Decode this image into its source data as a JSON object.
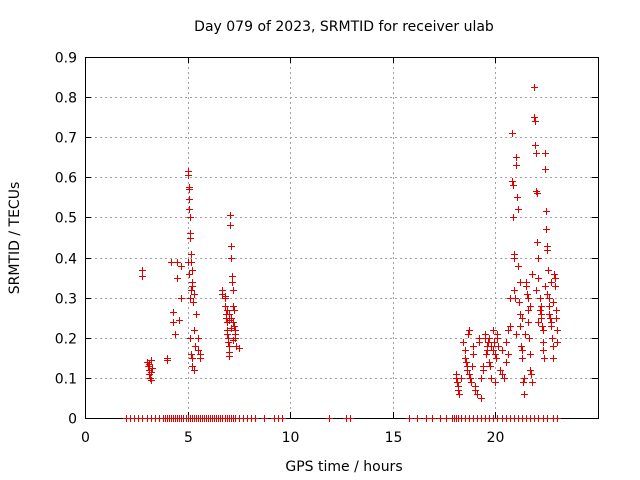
{
  "chart_data": {
    "type": "scatter",
    "title": "Day 079 of 2023, SRMTID for receiver ulab",
    "xlabel": "GPS time / hours",
    "ylabel": "SRMTID / TECUs",
    "xlim": [
      0,
      25
    ],
    "ylim": [
      0,
      0.9
    ],
    "xticks": [
      0,
      5,
      10,
      15,
      20
    ],
    "xtick_labels": [
      "0",
      "5",
      "10",
      "15",
      "20"
    ],
    "yticks": [
      0,
      0.1,
      0.2,
      0.3,
      0.4,
      0.5,
      0.6,
      0.7,
      0.8,
      0.9
    ],
    "ytick_labels": [
      "0",
      "0.1",
      "0.2",
      "0.3",
      "0.4",
      "0.5",
      "0.6",
      "0.7",
      "0.8",
      "0.9"
    ],
    "grid": true,
    "marker": "+",
    "color": "#e00000",
    "series": [
      {
        "name": "SRMTID",
        "points": [
          [
            2.8,
            0.37
          ],
          [
            2.8,
            0.355
          ],
          [
            3.0,
            0.14
          ],
          [
            3.05,
            0.13
          ],
          [
            3.1,
            0.12
          ],
          [
            3.1,
            0.11
          ],
          [
            3.15,
            0.1
          ],
          [
            3.2,
            0.145
          ],
          [
            3.2,
            0.095
          ],
          [
            3.25,
            0.125
          ],
          [
            3.1,
            0.135
          ],
          [
            3.2,
            0.115
          ],
          [
            4.0,
            0.15
          ],
          [
            4.0,
            0.145
          ],
          [
            4.2,
            0.39
          ],
          [
            4.3,
            0.265
          ],
          [
            4.3,
            0.24
          ],
          [
            4.4,
            0.21
          ],
          [
            4.5,
            0.39
          ],
          [
            4.5,
            0.35
          ],
          [
            4.6,
            0.245
          ],
          [
            4.7,
            0.3
          ],
          [
            4.7,
            0.38
          ],
          [
            5.0,
            0.615
          ],
          [
            5.0,
            0.605
          ],
          [
            5.05,
            0.575
          ],
          [
            5.05,
            0.57
          ],
          [
            5.05,
            0.545
          ],
          [
            5.05,
            0.52
          ],
          [
            5.1,
            0.5
          ],
          [
            5.1,
            0.46
          ],
          [
            5.1,
            0.45
          ],
          [
            5.15,
            0.41
          ],
          [
            5.15,
            0.39
          ],
          [
            5.2,
            0.37
          ],
          [
            5.2,
            0.34
          ],
          [
            5.2,
            0.33
          ],
          [
            5.15,
            0.32
          ],
          [
            5.1,
            0.3
          ],
          [
            5.1,
            0.2
          ],
          [
            5.15,
            0.16
          ],
          [
            5.2,
            0.15
          ],
          [
            5.2,
            0.13
          ],
          [
            5.3,
            0.12
          ],
          [
            5.3,
            0.31
          ],
          [
            5.4,
            0.26
          ],
          [
            5.3,
            0.22
          ],
          [
            5.35,
            0.18
          ],
          [
            5.5,
            0.2
          ],
          [
            5.5,
            0.17
          ],
          [
            5.6,
            0.15
          ],
          [
            5.6,
            0.16
          ],
          [
            5.0,
            0.39
          ],
          [
            5.05,
            0.36
          ],
          [
            5.25,
            0.29
          ],
          [
            6.7,
            0.32
          ],
          [
            6.7,
            0.31
          ],
          [
            6.8,
            0.305
          ],
          [
            6.8,
            0.3
          ],
          [
            6.85,
            0.26
          ],
          [
            6.85,
            0.25
          ],
          [
            6.9,
            0.24
          ],
          [
            6.9,
            0.22
          ],
          [
            6.9,
            0.21
          ],
          [
            6.95,
            0.2
          ],
          [
            6.95,
            0.19
          ],
          [
            7.0,
            0.18
          ],
          [
            7.0,
            0.165
          ],
          [
            7.0,
            0.155
          ],
          [
            7.05,
            0.505
          ],
          [
            7.05,
            0.48
          ],
          [
            7.1,
            0.43
          ],
          [
            7.1,
            0.4
          ],
          [
            7.15,
            0.355
          ],
          [
            7.15,
            0.34
          ],
          [
            7.2,
            0.32
          ],
          [
            7.2,
            0.28
          ],
          [
            7.25,
            0.27
          ],
          [
            7.25,
            0.23
          ],
          [
            7.3,
            0.22
          ],
          [
            7.3,
            0.21
          ],
          [
            7.3,
            0.2
          ],
          [
            7.35,
            0.18
          ],
          [
            7.5,
            0.175
          ],
          [
            7.0,
            0.245
          ],
          [
            7.1,
            0.225
          ],
          [
            7.2,
            0.195
          ],
          [
            6.8,
            0.28
          ],
          [
            6.9,
            0.27
          ],
          [
            7.0,
            0.26
          ],
          [
            7.1,
            0.25
          ],
          [
            7.2,
            0.24
          ],
          [
            18.1,
            0.11
          ],
          [
            18.1,
            0.1
          ],
          [
            18.15,
            0.09
          ],
          [
            18.2,
            0.08
          ],
          [
            18.2,
            0.07
          ],
          [
            18.25,
            0.06
          ],
          [
            18.3,
            0.1
          ],
          [
            18.4,
            0.19
          ],
          [
            18.5,
            0.17
          ],
          [
            18.5,
            0.15
          ],
          [
            18.55,
            0.14
          ],
          [
            18.6,
            0.13
          ],
          [
            18.6,
            0.12
          ],
          [
            18.65,
            0.21
          ],
          [
            18.7,
            0.22
          ],
          [
            18.7,
            0.11
          ],
          [
            18.75,
            0.1
          ],
          [
            18.8,
            0.09
          ],
          [
            18.85,
            0.13
          ],
          [
            18.9,
            0.16
          ],
          [
            18.9,
            0.18
          ],
          [
            19.0,
            0.08
          ],
          [
            19.0,
            0.07
          ],
          [
            19.1,
            0.06
          ],
          [
            19.2,
            0.2
          ],
          [
            19.2,
            0.19
          ],
          [
            19.3,
            0.05
          ],
          [
            19.3,
            0.1
          ],
          [
            19.4,
            0.13
          ],
          [
            19.4,
            0.12
          ],
          [
            19.5,
            0.21
          ],
          [
            19.5,
            0.2
          ],
          [
            19.55,
            0.16
          ],
          [
            19.6,
            0.18
          ],
          [
            19.6,
            0.17
          ],
          [
            19.65,
            0.19
          ],
          [
            19.7,
            0.2
          ],
          [
            19.7,
            0.14
          ],
          [
            19.75,
            0.13
          ],
          [
            19.8,
            0.18
          ],
          [
            19.8,
            0.1
          ],
          [
            19.9,
            0.22
          ],
          [
            19.9,
            0.17
          ],
          [
            19.95,
            0.19
          ],
          [
            20.0,
            0.16
          ],
          [
            20.0,
            0.09
          ],
          [
            20.05,
            0.15
          ],
          [
            20.1,
            0.21
          ],
          [
            20.1,
            0.2
          ],
          [
            20.15,
            0.18
          ],
          [
            20.2,
            0.12
          ],
          [
            20.3,
            0.11
          ],
          [
            20.3,
            0.17
          ],
          [
            20.4,
            0.1
          ],
          [
            20.5,
            0.19
          ],
          [
            20.5,
            0.14
          ],
          [
            20.6,
            0.22
          ],
          [
            20.6,
            0.16
          ],
          [
            20.7,
            0.3
          ],
          [
            20.7,
            0.23
          ],
          [
            20.8,
            0.71
          ],
          [
            20.8,
            0.59
          ],
          [
            20.85,
            0.58
          ],
          [
            20.85,
            0.5
          ],
          [
            20.9,
            0.41
          ],
          [
            20.9,
            0.4
          ],
          [
            20.9,
            0.32
          ],
          [
            20.95,
            0.3
          ],
          [
            21.0,
            0.65
          ],
          [
            21.0,
            0.63
          ],
          [
            21.05,
            0.55
          ],
          [
            21.1,
            0.52
          ],
          [
            21.1,
            0.38
          ],
          [
            21.15,
            0.29
          ],
          [
            21.2,
            0.26
          ],
          [
            21.2,
            0.23
          ],
          [
            21.25,
            0.18
          ],
          [
            21.3,
            0.17
          ],
          [
            21.3,
            0.15
          ],
          [
            21.35,
            0.09
          ],
          [
            21.4,
            0.06
          ],
          [
            21.4,
            0.1
          ],
          [
            21.45,
            0.21
          ],
          [
            21.5,
            0.34
          ],
          [
            21.5,
            0.33
          ],
          [
            21.55,
            0.31
          ],
          [
            21.6,
            0.27
          ],
          [
            21.6,
            0.24
          ],
          [
            21.65,
            0.2
          ],
          [
            21.7,
            0.16
          ],
          [
            21.7,
            0.12
          ],
          [
            21.75,
            0.11
          ],
          [
            21.8,
            0.09
          ],
          [
            21.9,
            0.825
          ],
          [
            21.9,
            0.75
          ],
          [
            21.95,
            0.74
          ],
          [
            21.95,
            0.68
          ],
          [
            22.0,
            0.66
          ],
          [
            22.0,
            0.565
          ],
          [
            22.05,
            0.56
          ],
          [
            22.05,
            0.44
          ],
          [
            22.1,
            0.4
          ],
          [
            22.1,
            0.35
          ],
          [
            22.15,
            0.3
          ],
          [
            22.15,
            0.27
          ],
          [
            22.2,
            0.26
          ],
          [
            22.2,
            0.25
          ],
          [
            22.25,
            0.23
          ],
          [
            22.3,
            0.19
          ],
          [
            22.3,
            0.17
          ],
          [
            22.35,
            0.15
          ],
          [
            22.4,
            0.66
          ],
          [
            22.4,
            0.62
          ],
          [
            22.45,
            0.515
          ],
          [
            22.45,
            0.47
          ],
          [
            22.5,
            0.43
          ],
          [
            22.5,
            0.42
          ],
          [
            22.55,
            0.37
          ],
          [
            22.6,
            0.3
          ],
          [
            22.6,
            0.28
          ],
          [
            22.65,
            0.25
          ],
          [
            22.7,
            0.24
          ],
          [
            22.7,
            0.23
          ],
          [
            22.75,
            0.2
          ],
          [
            22.8,
            0.18
          ],
          [
            22.8,
            0.15
          ],
          [
            22.85,
            0.36
          ],
          [
            22.9,
            0.35
          ],
          [
            22.9,
            0.33
          ],
          [
            22.95,
            0.27
          ],
          [
            22.95,
            0.25
          ],
          [
            23.0,
            0.22
          ],
          [
            23.0,
            0.19
          ],
          [
            21.2,
            0.34
          ],
          [
            21.6,
            0.3
          ],
          [
            21.8,
            0.36
          ],
          [
            22.0,
            0.32
          ],
          [
            22.2,
            0.28
          ],
          [
            22.4,
            0.33
          ],
          [
            22.6,
            0.26
          ],
          [
            22.8,
            0.29
          ],
          [
            21.0,
            0.21
          ],
          [
            21.3,
            0.25
          ],
          [
            21.7,
            0.28
          ],
          [
            22.1,
            0.24
          ],
          [
            22.3,
            0.22
          ],
          [
            22.5,
            0.31
          ],
          [
            22.7,
            0.34
          ]
        ]
      }
    ],
    "zero_x": [
      2.0,
      2.2,
      2.4,
      2.6,
      2.8,
      3.0,
      3.2,
      3.4,
      3.6,
      3.8,
      3.9,
      4.0,
      4.1,
      4.2,
      4.3,
      4.4,
      4.5,
      4.6,
      4.7,
      4.8,
      4.9,
      5.0,
      5.1,
      5.2,
      5.3,
      5.4,
      5.5,
      5.6,
      5.7,
      5.8,
      5.9,
      6.0,
      6.1,
      6.2,
      6.3,
      6.4,
      6.5,
      6.6,
      6.7,
      6.8,
      6.9,
      7.0,
      7.1,
      7.2,
      7.3,
      7.5,
      7.7,
      7.9,
      8.1,
      8.3,
      8.7,
      9.2,
      9.4,
      9.6,
      11.9,
      12.7,
      12.9,
      15.8,
      16.2,
      16.6,
      16.9,
      17.3,
      17.6,
      17.9,
      18.0,
      18.1,
      18.2,
      18.3,
      18.5,
      18.7,
      18.9,
      19.1,
      19.3,
      19.5,
      19.7,
      19.9,
      20.1,
      20.3,
      20.5,
      20.7,
      20.9,
      21.1,
      21.3,
      21.5,
      21.7,
      21.9,
      22.1,
      22.3,
      22.5,
      22.8,
      23.0
    ]
  }
}
